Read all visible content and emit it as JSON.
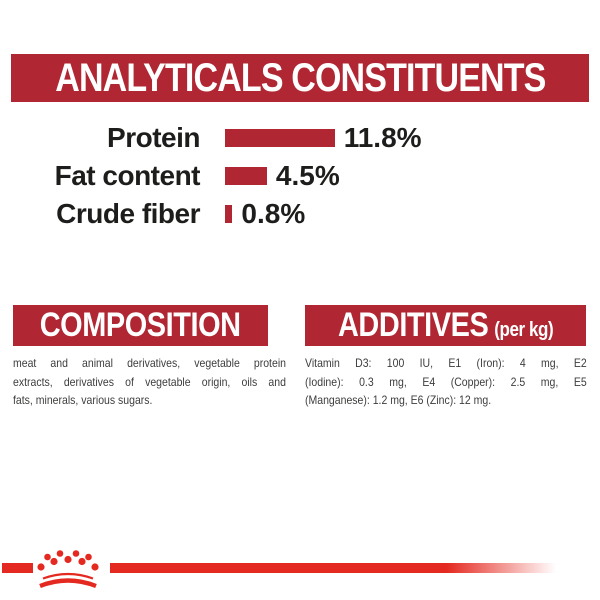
{
  "colors": {
    "dark_red": "#b02733",
    "bright_red": "#e42a20",
    "banner_text": "#ffffff",
    "label_text": "#1d1d1b",
    "body_text": "#3d3d3c",
    "background": "#ffffff"
  },
  "header": {
    "title": "ANALYTICALS CONSTITUENTS"
  },
  "chart_data": {
    "type": "bar",
    "orientation": "horizontal",
    "title": "ANALYTICALS CONSTITUENTS",
    "categories": [
      "Protein",
      "Fat content",
      "Crude fiber"
    ],
    "values": [
      11.8,
      4.5,
      0.8
    ],
    "value_labels": [
      "11.8%",
      "4.5%",
      "0.8%"
    ],
    "unit": "%",
    "xlim": [
      0,
      12
    ],
    "bar_color": "#b02733",
    "grid": false,
    "legend": false
  },
  "composition": {
    "heading": "COMPOSITION",
    "lines": [
      "meat and animal derivatives, vegetable protein",
      "extracts, derivatives of vegetable origin, oils and",
      "fats, minerals, various sugars."
    ]
  },
  "additives": {
    "heading": "ADDITIVES",
    "heading_suffix": "(per kg)",
    "lines": [
      "Vitamin D3: 100 IU, E1 (Iron): 4 mg, E2",
      "(Iodine): 0.3 mg, E4 (Copper): 2.5 mg, E5",
      "(Manganese): 1.2 mg, E6 (Zinc): 12 mg."
    ]
  },
  "footer": {
    "logo": "royal-canin-crown"
  }
}
